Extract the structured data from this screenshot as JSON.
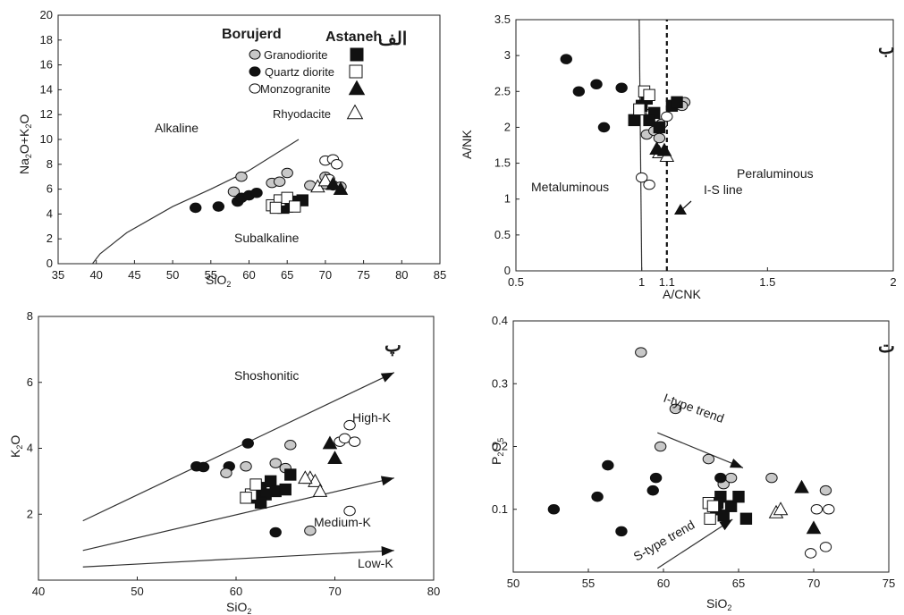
{
  "panels": [
    {
      "id": "A",
      "label": "الف",
      "chart_data": {
        "type": "scatter",
        "xlabel": "SiO2",
        "ylabel": "Na2O+K2O",
        "xlim": [
          35,
          85
        ],
        "ylim": [
          0,
          20
        ],
        "xticks": [
          35,
          40,
          45,
          50,
          55,
          60,
          65,
          70,
          75,
          80,
          85
        ],
        "yticks": [
          0,
          2,
          4,
          6,
          8,
          10,
          12,
          14,
          16,
          18,
          20
        ],
        "lines": [
          {
            "points": [
              [
                39.5,
                0
              ],
              [
                40.5,
                0.8
              ],
              [
                44,
                2.5
              ],
              [
                50,
                4.6
              ],
              [
                55,
                6.0
              ],
              [
                60,
                7.5
              ],
              [
                66.5,
                10
              ]
            ],
            "dashed": false,
            "color": "#333333"
          }
        ],
        "series": [
          {
            "name": "Granodiorite",
            "marker": "circle",
            "fill": "#c8c8c8",
            "points": [
              [
                58,
                5.8
              ],
              [
                59,
                7.0
              ],
              [
                63,
                6.5
              ],
              [
                64,
                6.6
              ],
              [
                65,
                7.3
              ],
              [
                68,
                6.3
              ],
              [
                70,
                7.0
              ],
              [
                70,
                6.4
              ],
              [
                71,
                6.3
              ],
              [
                72,
                6.2
              ]
            ]
          },
          {
            "name": "Quartz diorite",
            "marker": "circle",
            "fill": "#111111",
            "points": [
              [
                53,
                4.5
              ],
              [
                56,
                4.6
              ],
              [
                58.5,
                5.0
              ],
              [
                59,
                5.3
              ],
              [
                60,
                5.5
              ],
              [
                61,
                5.7
              ]
            ]
          },
          {
            "name": "Monzogranite",
            "marker": "circle",
            "fill": "#ffffff",
            "points": [
              [
                70,
                8.3
              ],
              [
                71,
                8.4
              ],
              [
                71.5,
                8.0
              ],
              [
                70.5,
                6.8
              ]
            ]
          },
          {
            "name": "Rhyodacite",
            "marker": "triangle",
            "fill": "#ffffff",
            "points": [
              [
                69,
                6.2
              ],
              [
                70,
                6.7
              ]
            ]
          },
          {
            "name": "Granodiorite",
            "marker": "square",
            "fill": "#111111",
            "points": [
              [
                64,
                4.8
              ],
              [
                65,
                4.6
              ],
              [
                66,
                5.0
              ],
              [
                67,
                5.1
              ],
              [
                64.5,
                4.5
              ],
              [
                65.5,
                4.9
              ]
            ]
          },
          {
            "name": "Quartz diorite",
            "marker": "square",
            "fill": "#ffffff",
            "points": [
              [
                63,
                4.7
              ],
              [
                64,
                5.1
              ],
              [
                65,
                5.3
              ],
              [
                66,
                4.6
              ],
              [
                63.5,
                4.5
              ]
            ]
          },
          {
            "name": "Monzogranite",
            "marker": "triangle",
            "fill": "#111111",
            "points": [
              [
                72,
                6.0
              ],
              [
                71,
                6.4
              ]
            ]
          }
        ],
        "legend": {
          "title_left": "Borujerd",
          "title_right": "Astaneh",
          "entries": [
            "Granodiorite",
            "Quartz diorite",
            "Monzogranite",
            "Rhyodacite"
          ]
        },
        "annotations": [
          "Alkaline",
          "Subalkaline"
        ]
      }
    },
    {
      "id": "B",
      "label": "ب",
      "chart_data": {
        "type": "scatter",
        "xlabel": "A/CNK",
        "ylabel": "A/NK",
        "xlim": [
          0.5,
          2
        ],
        "ylim": [
          0,
          3.5
        ],
        "xticks": [
          0.5,
          1,
          1.1,
          1.5,
          2
        ],
        "yticks": [
          0,
          0.5,
          1,
          1.5,
          2,
          2.5,
          3,
          3.5
        ],
        "lines": [
          {
            "points": [
              [
                1.0,
                0
              ],
              [
                0.99,
                3.5
              ]
            ],
            "dashed": false,
            "color": "#333333"
          },
          {
            "points": [
              [
                1.1,
                0
              ],
              [
                1.1,
                3.5
              ]
            ],
            "dashed": true,
            "color": "#111111"
          }
        ],
        "series": [
          {
            "name": "Quartz diorite",
            "marker": "circle",
            "fill": "#111111",
            "points": [
              [
                0.7,
                2.95
              ],
              [
                0.75,
                2.5
              ],
              [
                0.82,
                2.6
              ],
              [
                0.85,
                2.0
              ],
              [
                0.92,
                2.55
              ]
            ]
          },
          {
            "name": "Granodiorite",
            "marker": "circle",
            "fill": "#c8c8c8",
            "points": [
              [
                1.02,
                1.9
              ],
              [
                1.05,
                1.95
              ],
              [
                1.07,
                1.85
              ],
              [
                1.08,
                2.05
              ],
              [
                1.17,
                2.35
              ],
              [
                1.16,
                2.3
              ]
            ]
          },
          {
            "name": "Monzogranite",
            "marker": "circle",
            "fill": "#ffffff",
            "points": [
              [
                1.0,
                1.3
              ],
              [
                1.03,
                1.2
              ],
              [
                1.07,
                2.0
              ],
              [
                1.1,
                2.15
              ],
              [
                1.04,
                2.2
              ]
            ]
          },
          {
            "name": "Granodiorite",
            "marker": "square",
            "fill": "#111111",
            "points": [
              [
                0.97,
                2.1
              ],
              [
                1.0,
                2.3
              ],
              [
                1.02,
                2.4
              ],
              [
                1.05,
                2.2
              ],
              [
                1.07,
                2.0
              ],
              [
                1.12,
                2.3
              ],
              [
                1.14,
                2.35
              ],
              [
                1.03,
                2.1
              ]
            ]
          },
          {
            "name": "Quartz diorite",
            "marker": "square",
            "fill": "#ffffff",
            "points": [
              [
                1.01,
                2.5
              ],
              [
                1.03,
                2.45
              ],
              [
                0.99,
                2.25
              ]
            ]
          },
          {
            "name": "Rhyodacite",
            "marker": "triangle",
            "fill": "#ffffff",
            "points": [
              [
                1.07,
                1.65
              ],
              [
                1.1,
                1.6
              ]
            ]
          },
          {
            "name": "Monzogranite",
            "marker": "triangle",
            "fill": "#111111",
            "points": [
              [
                1.06,
                1.7
              ],
              [
                1.09,
                1.68
              ]
            ]
          }
        ],
        "annotations": [
          "Metaluminous",
          "Peraluminous",
          "I-S line"
        ]
      }
    },
    {
      "id": "C",
      "label": "پ",
      "chart_data": {
        "type": "scatter",
        "xlabel": "SiO2",
        "ylabel": "K2O",
        "xlim": [
          40,
          80
        ],
        "ylim": [
          0,
          8
        ],
        "xticks": [
          40,
          50,
          60,
          70,
          80
        ],
        "yticks": [
          2,
          4,
          6,
          8
        ],
        "lines": [
          {
            "points": [
              [
                44.5,
                1.8
              ],
              [
                76,
                6.3
              ]
            ],
            "dashed": false,
            "color": "#333333"
          },
          {
            "points": [
              [
                44.5,
                0.9
              ],
              [
                76,
                3.1
              ]
            ],
            "dashed": false,
            "color": "#333333"
          },
          {
            "points": [
              [
                44.5,
                0.4
              ],
              [
                76,
                0.9
              ]
            ],
            "dashed": false,
            "color": "#333333"
          }
        ],
        "series": [
          {
            "name": "Quartz diorite",
            "marker": "circle",
            "fill": "#111111",
            "points": [
              [
                56,
                3.45
              ],
              [
                56.7,
                3.43
              ],
              [
                59.3,
                3.45
              ],
              [
                61.2,
                4.15
              ],
              [
                64,
                1.45
              ]
            ]
          },
          {
            "name": "Granodiorite",
            "marker": "circle",
            "fill": "#c8c8c8",
            "points": [
              [
                59,
                3.25
              ],
              [
                61,
                3.45
              ],
              [
                64,
                3.55
              ],
              [
                65,
                3.4
              ],
              [
                65.5,
                4.1
              ],
              [
                67.5,
                1.5
              ]
            ]
          },
          {
            "name": "Monzogranite",
            "marker": "circle",
            "fill": "#ffffff",
            "points": [
              [
                70.5,
                4.2
              ],
              [
                71,
                4.3
              ],
              [
                71.5,
                4.7
              ],
              [
                72,
                4.2
              ],
              [
                71.5,
                2.1
              ]
            ]
          },
          {
            "name": "Granodiorite",
            "marker": "square",
            "fill": "#111111",
            "points": [
              [
                62,
                2.5
              ],
              [
                62.5,
                2.8
              ],
              [
                63,
                2.6
              ],
              [
                63.5,
                3.0
              ],
              [
                64,
                2.7
              ],
              [
                65,
                2.75
              ],
              [
                65.5,
                3.2
              ],
              [
                62.5,
                2.35
              ]
            ]
          },
          {
            "name": "Quartz diorite",
            "marker": "square",
            "fill": "#ffffff",
            "points": [
              [
                61.5,
                2.6
              ],
              [
                62,
                2.9
              ],
              [
                61,
                2.5
              ]
            ]
          },
          {
            "name": "Rhyodacite",
            "marker": "triangle",
            "fill": "#ffffff",
            "points": [
              [
                67.5,
                3.1
              ],
              [
                68,
                3.0
              ],
              [
                68.5,
                2.7
              ],
              [
                67,
                3.1
              ]
            ]
          },
          {
            "name": "Monzogranite",
            "marker": "triangle",
            "fill": "#111111",
            "points": [
              [
                70,
                3.7
              ],
              [
                69.5,
                4.15
              ]
            ]
          }
        ],
        "annotations": [
          "Shoshonitic",
          "High-K",
          "Medium-K",
          "Low-K"
        ]
      }
    },
    {
      "id": "D",
      "label": "ت",
      "chart_data": {
        "type": "scatter",
        "xlabel": "SiO2",
        "ylabel": "P2O5",
        "xlim": [
          50,
          75
        ],
        "ylim": [
          0,
          0.4
        ],
        "xticks": [
          50,
          55,
          60,
          65,
          70,
          75
        ],
        "yticks": [
          0.1,
          0.2,
          0.3,
          0.4
        ],
        "lines": [
          {
            "points": [
              [
                59.6,
                0.222
              ],
              [
                65.3,
                0.166
              ]
            ],
            "dashed": false,
            "color": "#333333"
          },
          {
            "points": [
              [
                59.6,
                0.006
              ],
              [
                64.6,
                0.084
              ]
            ],
            "dashed": false,
            "color": "#333333"
          }
        ],
        "series": [
          {
            "name": "Granodiorite",
            "marker": "circle",
            "fill": "#c8c8c8",
            "points": [
              [
                58.5,
                0.35
              ],
              [
                59.8,
                0.2
              ],
              [
                60.8,
                0.26
              ],
              [
                63,
                0.18
              ],
              [
                64,
                0.14
              ],
              [
                64.5,
                0.15
              ],
              [
                67.2,
                0.15
              ],
              [
                70.8,
                0.13
              ]
            ]
          },
          {
            "name": "Quartz diorite",
            "marker": "circle",
            "fill": "#111111",
            "points": [
              [
                52.7,
                0.1
              ],
              [
                55.6,
                0.12
              ],
              [
                56.3,
                0.17
              ],
              [
                57.2,
                0.065
              ],
              [
                59.3,
                0.13
              ],
              [
                59.5,
                0.15
              ],
              [
                63.8,
                0.15
              ]
            ]
          },
          {
            "name": "Monzogranite",
            "marker": "circle",
            "fill": "#ffffff",
            "points": [
              [
                69.8,
                0.03
              ],
              [
                70.2,
                0.1
              ],
              [
                70.8,
                0.04
              ],
              [
                71,
                0.1
              ]
            ]
          },
          {
            "name": "Granodiorite",
            "marker": "square",
            "fill": "#111111",
            "points": [
              [
                63.5,
                0.1
              ],
              [
                63.8,
                0.12
              ],
              [
                64,
                0.09
              ],
              [
                64.5,
                0.105
              ],
              [
                65,
                0.12
              ],
              [
                65.5,
                0.085
              ],
              [
                63.6,
                0.11
              ]
            ]
          },
          {
            "name": "Quartz diorite",
            "marker": "square",
            "fill": "#ffffff",
            "points": [
              [
                63,
                0.11
              ],
              [
                63.3,
                0.105
              ],
              [
                63.1,
                0.085
              ]
            ]
          },
          {
            "name": "Rhyodacite",
            "marker": "triangle",
            "fill": "#ffffff",
            "points": [
              [
                67.5,
                0.095
              ],
              [
                67.8,
                0.1
              ]
            ]
          },
          {
            "name": "Monzogranite",
            "marker": "triangle",
            "fill": "#111111",
            "points": [
              [
                69.2,
                0.135
              ],
              [
                70,
                0.07
              ]
            ]
          }
        ],
        "annotations": [
          "I-type trend",
          "S-type trend"
        ]
      }
    }
  ]
}
